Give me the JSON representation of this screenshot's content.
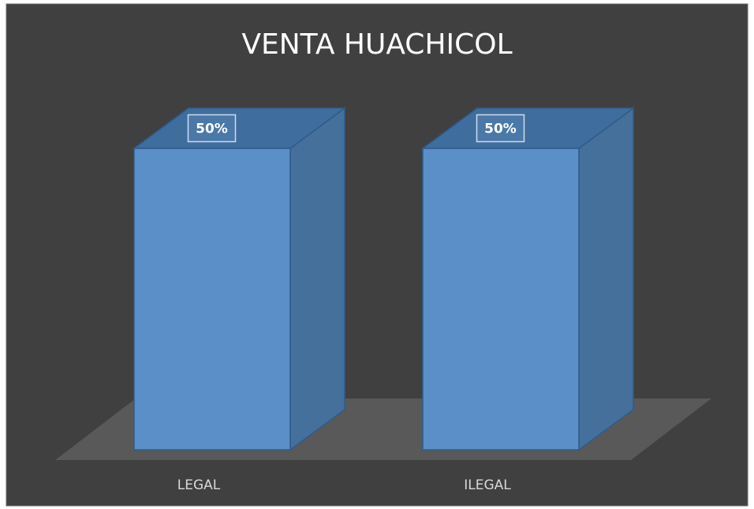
{
  "chart_data": {
    "type": "bar",
    "title": "VENTA HUACHICOL",
    "categories": [
      "LEGAL",
      "ILEGAL"
    ],
    "values": [
      50,
      50
    ],
    "value_labels": [
      "50%",
      "50%"
    ],
    "color": "#5b8fc7"
  }
}
